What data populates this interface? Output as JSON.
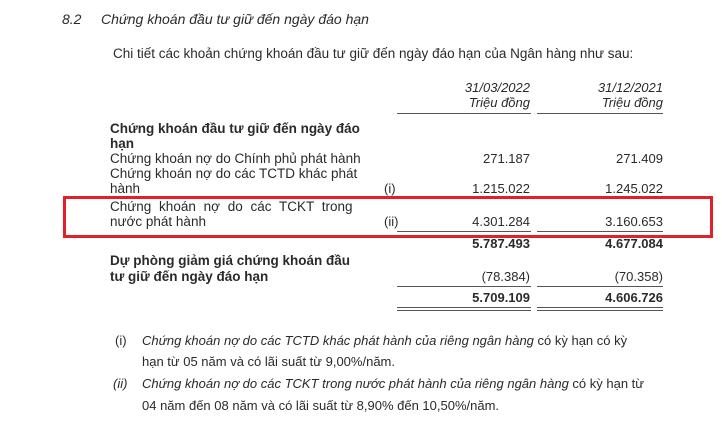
{
  "section": {
    "number": "8.2",
    "title": "Chứng khoán đầu tư giữ đến ngày đáo hạn"
  },
  "intro": "Chi tiết các khoản chứng khoán đầu tư giữ đến ngày đáo hạn của Ngân hàng như sau:",
  "columns": [
    {
      "date": "31/03/2022",
      "unit": "Triệu đồng"
    },
    {
      "date": "31/12/2021",
      "unit": "Triệu đồng"
    }
  ],
  "table": {
    "group_heading": [
      "Chứng khoán đầu tư giữ đến ngày đáo",
      "hạn"
    ],
    "rows": [
      {
        "label": [
          "Chứng khoán nợ do Chính phủ phát hành"
        ],
        "note": "",
        "values": [
          "271.187",
          "271.409"
        ]
      },
      {
        "label": [
          "Chứng khoán nợ do các TCTD khác phát",
          "hành"
        ],
        "note": "(i)",
        "values": [
          "1.215.022",
          "1.245.022"
        ]
      },
      {
        "label": [
          "Chứng khoán nợ do các TCKT trong",
          "nước phát hành"
        ],
        "note": "(ii)",
        "values": [
          "4.301.284",
          "3.160.653"
        ],
        "highlighted": true
      }
    ],
    "subtotal": [
      "5.787.493",
      "4.677.084"
    ],
    "provision": {
      "label": [
        "Dự phòng giảm giá chứng khoán đầu",
        "tư giữ đến ngày đáo hạn"
      ],
      "values": [
        "(78.384)",
        "(70.358)"
      ]
    },
    "total": [
      "5.709.109",
      "4.606.726"
    ]
  },
  "notes": [
    {
      "marker": "(i)",
      "italic": "Chứng khoán nợ do các TCTD khác phát hành của riêng ngân hàng",
      "rest": " có kỳ hạn có kỳ",
      "line2": "hạn từ 05 năm và có lãi suất từ 9,00%/năm."
    },
    {
      "marker": "(ii)",
      "italic": "Chứng khoán nợ do các TCKT trong nước phát hành của riêng ngân hàng",
      "rest": " có kỳ hạn từ",
      "line2": "04 năm đến 08 năm và có lãi suất từ 8,90% đến 10,50%/năm."
    }
  ],
  "highlight_color": "#e3202a"
}
